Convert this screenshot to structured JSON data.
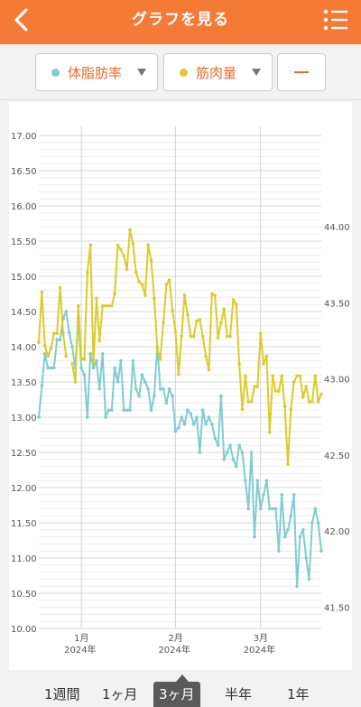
{
  "header": {
    "title": "グラフを見る",
    "back_icon": "chevron-left-icon",
    "menu_icon": "list-menu-icon"
  },
  "filters": {
    "series1": {
      "label": "体脂肪率",
      "color": "#7fcdcf"
    },
    "series2": {
      "label": "筋肉量",
      "color": "#dccb2a"
    },
    "minus_icon": "minus-icon"
  },
  "periods": {
    "items": [
      "1週間",
      "1ヶ月",
      "3ヶ月",
      "半年",
      "1年"
    ],
    "selected": "3ヶ月"
  },
  "chart_data": {
    "type": "line",
    "x_ticks": [
      {
        "x": 11,
        "month": "1月",
        "year": "2024年"
      },
      {
        "x": 42,
        "month": "2月",
        "year": "2024年"
      },
      {
        "x": 70,
        "month": "3月",
        "year": "2024年"
      }
    ],
    "x_range": [
      -3,
      90
    ],
    "grid": true,
    "left_axis": {
      "ticks": [
        "17.00",
        "16.50",
        "16.00",
        "15.50",
        "15.00",
        "14.50",
        "14.00",
        "13.50",
        "13.00",
        "12.50",
        "12.00",
        "11.50",
        "11.00",
        "10.50",
        "10.00"
      ],
      "range": [
        10.0,
        17.0
      ]
    },
    "right_axis": {
      "ticks": [
        "44.00",
        "43.50",
        "43.00",
        "42.50",
        "42.00",
        "41.50"
      ],
      "range": [
        41.36,
        44.6
      ]
    },
    "series": [
      {
        "name": "体脂肪率",
        "axis": "left",
        "color": "#7fcdcf",
        "x": [
          -3,
          -2,
          -1,
          0,
          1,
          2,
          3,
          4,
          5,
          6,
          7,
          8,
          9,
          10,
          11,
          12,
          13,
          14,
          15,
          16,
          17,
          18,
          19,
          20,
          21,
          22,
          23,
          24,
          25,
          26,
          27,
          28,
          29,
          30,
          31,
          32,
          33,
          34,
          35,
          36,
          37,
          38,
          39,
          40,
          41,
          42,
          43,
          44,
          45,
          46,
          47,
          48,
          49,
          50,
          51,
          52,
          53,
          54,
          55,
          56,
          57,
          58,
          59,
          60,
          61,
          62,
          63,
          64,
          65,
          66,
          67,
          68,
          69,
          70,
          71,
          72,
          73,
          74,
          75,
          76,
          77,
          78,
          79,
          80,
          81,
          82,
          83,
          84,
          85,
          86,
          87,
          88,
          89,
          90
        ],
        "y": [
          13.0,
          13.45,
          13.9,
          13.7,
          13.7,
          13.7,
          14.1,
          14.1,
          14.4,
          14.5,
          14.2,
          14.0,
          13.7,
          14.4,
          13.7,
          13.6,
          13.0,
          13.9,
          13.7,
          13.8,
          13.4,
          13.9,
          13.0,
          13.1,
          13.1,
          13.7,
          13.5,
          13.8,
          13.1,
          13.1,
          13.1,
          13.8,
          13.4,
          13.3,
          13.6,
          13.5,
          13.4,
          13.1,
          13.3,
          14.0,
          13.4,
          13.4,
          13.2,
          13.4,
          13.3,
          12.8,
          12.85,
          13.0,
          12.9,
          13.1,
          13.05,
          12.9,
          13.0,
          12.5,
          13.1,
          12.9,
          13.0,
          12.9,
          12.7,
          12.6,
          13.3,
          12.4,
          12.5,
          12.6,
          12.4,
          12.3,
          12.6,
          12.5,
          12.1,
          11.7,
          12.5,
          11.3,
          12.1,
          11.7,
          11.9,
          12.1,
          11.7,
          11.7,
          11.7,
          11.1,
          11.9,
          11.3,
          11.4,
          11.6,
          11.9,
          10.6,
          11.3,
          11.4,
          11.0,
          10.7,
          11.5,
          11.7,
          11.5,
          11.1
        ]
      },
      {
        "name": "筋肉量",
        "axis": "right",
        "color": "#dccb2a",
        "x": [
          -3,
          -2,
          -1,
          0,
          1,
          2,
          3,
          4,
          5,
          6,
          7,
          8,
          9,
          10,
          11,
          12,
          13,
          14,
          15,
          16,
          17,
          18,
          19,
          20,
          21,
          22,
          23,
          24,
          25,
          26,
          27,
          28,
          29,
          30,
          31,
          32,
          33,
          34,
          35,
          36,
          37,
          38,
          39,
          40,
          41,
          42,
          43,
          44,
          45,
          46,
          47,
          48,
          49,
          50,
          51,
          52,
          53,
          54,
          55,
          56,
          57,
          58,
          59,
          60,
          61,
          62,
          63,
          64,
          65,
          66,
          67,
          68,
          69,
          70,
          71,
          72,
          73,
          74,
          75,
          76,
          77,
          78,
          79,
          80,
          81,
          82,
          83,
          84,
          85,
          86,
          87,
          88,
          89,
          90
        ],
        "y": [
          43.24,
          43.57,
          43.22,
          43.15,
          43.2,
          43.3,
          43.3,
          43.6,
          43.3,
          43.15,
          null,
          43.1,
          42.98,
          43.48,
          43.13,
          43.13,
          43.7,
          43.88,
          43.1,
          43.53,
          43.25,
          43.48,
          43.48,
          43.48,
          43.48,
          43.56,
          43.88,
          43.85,
          43.81,
          43.72,
          43.98,
          43.89,
          43.7,
          43.64,
          43.62,
          43.55,
          43.88,
          43.78,
          43.53,
          43.2,
          43.13,
          43.37,
          43.62,
          43.65,
          43.45,
          43.31,
          43.03,
          43.28,
          43.55,
          43.42,
          43.28,
          43.28,
          43.38,
          43.39,
          43.28,
          43.15,
          43.06,
          43.56,
          43.55,
          43.27,
          43.37,
          43.46,
          43.28,
          43.28,
          43.52,
          43.49,
          43.1,
          42.8,
          43.02,
          42.85,
          42.85,
          42.95,
          42.95,
          43.3,
          43.1,
          43.15,
          42.65,
          43.02,
          42.92,
          42.92,
          43.02,
          42.82,
          42.44,
          42.8,
          42.98,
          43.02,
          43.02,
          42.88,
          42.95,
          42.85,
          42.85,
          43.02,
          42.85,
          42.9
        ]
      }
    ]
  }
}
